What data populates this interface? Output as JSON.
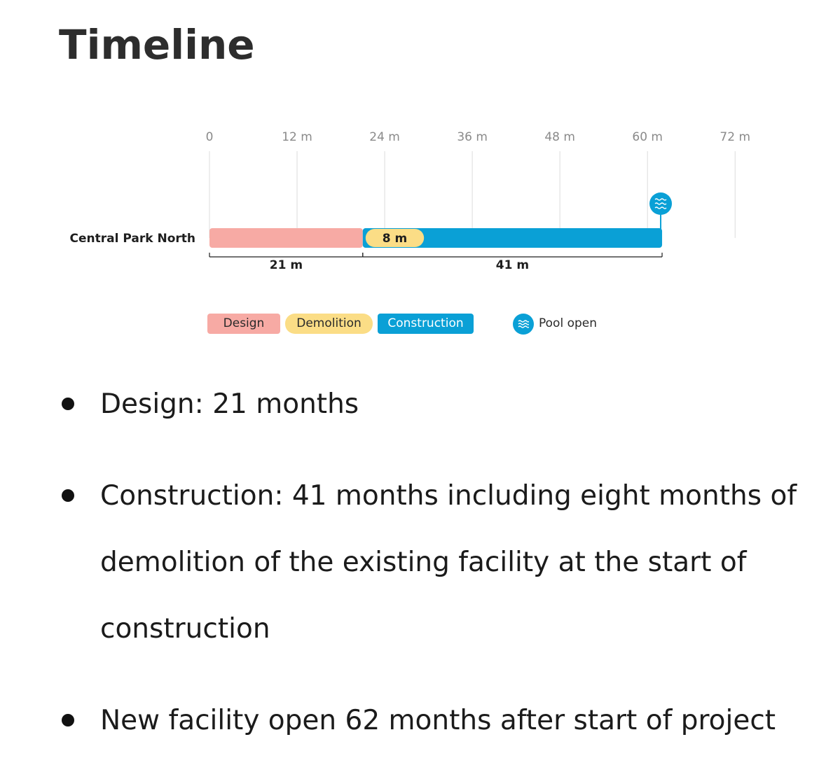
{
  "page": {
    "title": "Timeline"
  },
  "chart_data": {
    "type": "timeline",
    "x_unit": "months",
    "xlim": [
      0,
      72
    ],
    "ticks": [
      {
        "value": 0,
        "label": "0"
      },
      {
        "value": 12,
        "label": "12 m"
      },
      {
        "value": 24,
        "label": "24 m"
      },
      {
        "value": 36,
        "label": "36 m"
      },
      {
        "value": 48,
        "label": "48 m"
      },
      {
        "value": 60,
        "label": "60 m"
      },
      {
        "value": 72,
        "label": "72 m"
      }
    ],
    "rows": [
      {
        "label": "Central Park North",
        "segments": [
          {
            "phase": "Design",
            "start": 0,
            "end": 21,
            "color": "#f7aaa4"
          },
          {
            "phase": "Construction",
            "start": 21,
            "end": 62,
            "color": "#0aa0d6"
          },
          {
            "phase": "Demolition",
            "start": 21,
            "end": 29,
            "color": "#fbdd86",
            "label": "8 m"
          }
        ],
        "spans": [
          {
            "start": 0,
            "end": 21,
            "label": "21 m"
          },
          {
            "start": 21,
            "end": 62,
            "label": "41 m"
          }
        ],
        "milestone": {
          "name": "Pool open",
          "at": 62,
          "icon": "wave-icon"
        }
      }
    ],
    "legend": [
      {
        "label": "Design",
        "color": "#f7aaa4"
      },
      {
        "label": "Demolition",
        "color": "#fbdd86"
      },
      {
        "label": "Construction",
        "color": "#0aa0d6"
      },
      {
        "label": "Pool open",
        "icon": "wave-icon",
        "color": "#0aa0d6"
      }
    ]
  },
  "notes": [
    "Design: 21 months",
    "Construction: 41 months including eight months of demolition of the existing facility at the start of construction",
    "New facility open 62 months after start of project"
  ]
}
